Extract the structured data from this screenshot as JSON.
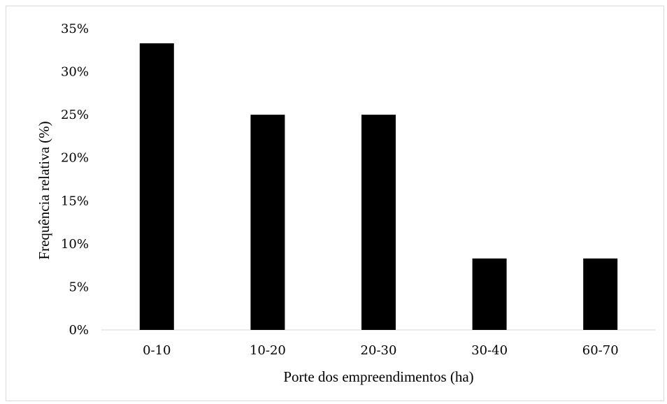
{
  "chart_data": {
    "type": "bar",
    "categories": [
      "0-10",
      "10-20",
      "20-30",
      "30-40",
      "60-70"
    ],
    "values": [
      33.3,
      25.0,
      25.0,
      8.3,
      8.3
    ],
    "xlabel": "Porte dos empreendimentos (ha)",
    "ylabel": "Frequência relativa (%)",
    "ylim": [
      0,
      35
    ],
    "yticks": [
      "0%",
      "5%",
      "10%",
      "15%",
      "20%",
      "25%",
      "30%",
      "35%"
    ],
    "grid": false,
    "legend": "none",
    "bar_color": "#000000",
    "axis_color": "#d9d9d9"
  }
}
